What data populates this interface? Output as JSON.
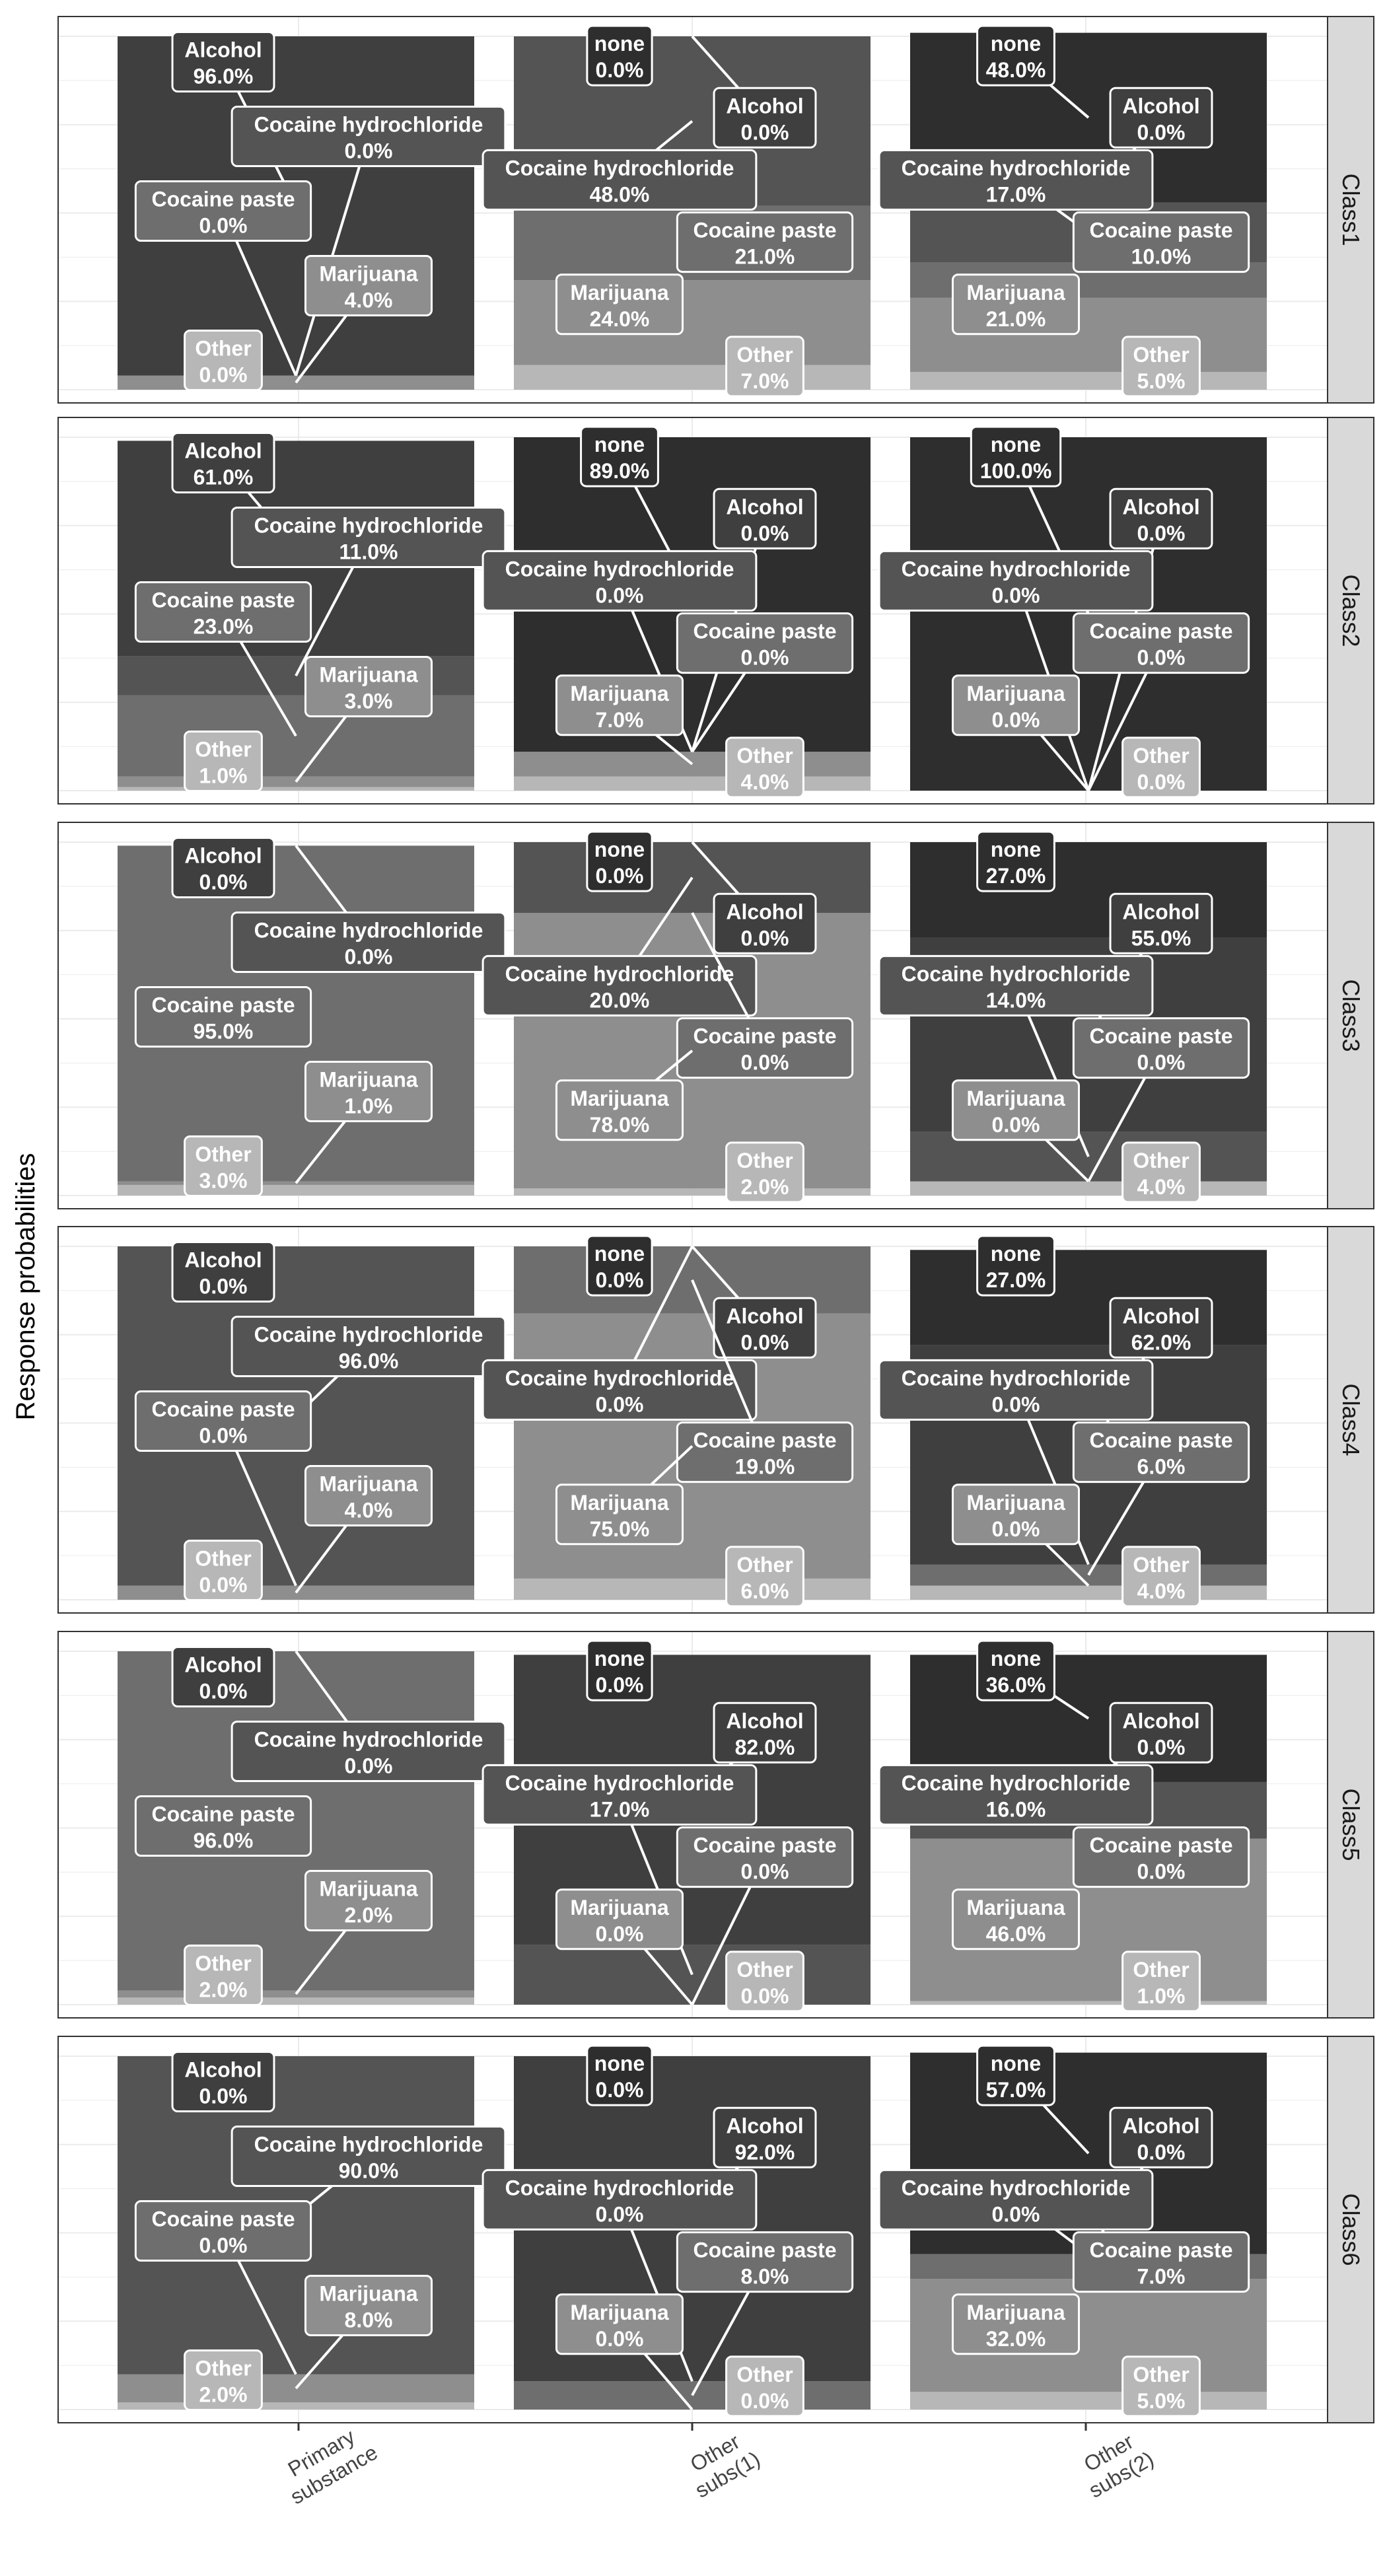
{
  "chart_data": {
    "type": "stacked-bar",
    "ylabel": "Response probabilities",
    "x_ticks": [
      [
        "Primary",
        "substance"
      ],
      [
        "Other",
        "subs(1)"
      ],
      [
        "Other",
        "subs(2)"
      ]
    ],
    "stack_order": [
      "Other",
      "Marijuana",
      "Cocaine paste",
      "Cocaine hydrochloride",
      "Alcohol",
      "none"
    ],
    "colors": {
      "Other": "#b7b7b7",
      "Marijuana": "#8e8e8e",
      "Cocaine paste": "#6e6e6e",
      "Cocaine hydrochloride": "#545454",
      "Alcohol": "#3f3f3f",
      "none": "#2e2e2e"
    },
    "panels": [
      {
        "name": "Class1",
        "columns": [
          {
            "Alcohol": "96.0%",
            "Cocaine hydrochloride": "0.0%",
            "Cocaine paste": "0.0%",
            "Marijuana": "4.0%",
            "Other": "0.0%"
          },
          {
            "none": "0.0%",
            "Alcohol": "0.0%",
            "Cocaine hydrochloride": "48.0%",
            "Cocaine paste": "21.0%",
            "Marijuana": "24.0%",
            "Other": "7.0%"
          },
          {
            "none": "48.0%",
            "Alcohol": "0.0%",
            "Cocaine hydrochloride": "17.0%",
            "Cocaine paste": "10.0%",
            "Marijuana": "21.0%",
            "Other": "5.0%"
          }
        ]
      },
      {
        "name": "Class2",
        "columns": [
          {
            "Alcohol": "61.0%",
            "Cocaine hydrochloride": "11.0%",
            "Cocaine paste": "23.0%",
            "Marijuana": "3.0%",
            "Other": "1.0%"
          },
          {
            "none": "89.0%",
            "Alcohol": "0.0%",
            "Cocaine hydrochloride": "0.0%",
            "Cocaine paste": "0.0%",
            "Marijuana": "7.0%",
            "Other": "4.0%"
          },
          {
            "none": "100.0%",
            "Alcohol": "0.0%",
            "Cocaine hydrochloride": "0.0%",
            "Cocaine paste": "0.0%",
            "Marijuana": "0.0%",
            "Other": "0.0%"
          }
        ]
      },
      {
        "name": "Class3",
        "columns": [
          {
            "Alcohol": "0.0%",
            "Cocaine hydrochloride": "0.0%",
            "Cocaine paste": "95.0%",
            "Marijuana": "1.0%",
            "Other": "3.0%"
          },
          {
            "none": "0.0%",
            "Alcohol": "0.0%",
            "Cocaine hydrochloride": "20.0%",
            "Cocaine paste": "0.0%",
            "Marijuana": "78.0%",
            "Other": "2.0%"
          },
          {
            "none": "27.0%",
            "Alcohol": "55.0%",
            "Cocaine hydrochloride": "14.0%",
            "Cocaine paste": "0.0%",
            "Marijuana": "0.0%",
            "Other": "4.0%"
          }
        ]
      },
      {
        "name": "Class4",
        "columns": [
          {
            "Alcohol": "0.0%",
            "Cocaine hydrochloride": "96.0%",
            "Cocaine paste": "0.0%",
            "Marijuana": "4.0%",
            "Other": "0.0%"
          },
          {
            "none": "0.0%",
            "Alcohol": "0.0%",
            "Cocaine hydrochloride": "0.0%",
            "Cocaine paste": "19.0%",
            "Marijuana": "75.0%",
            "Other": "6.0%"
          },
          {
            "none": "27.0%",
            "Alcohol": "62.0%",
            "Cocaine hydrochloride": "0.0%",
            "Cocaine paste": "6.0%",
            "Marijuana": "0.0%",
            "Other": "4.0%"
          }
        ]
      },
      {
        "name": "Class5",
        "columns": [
          {
            "Alcohol": "0.0%",
            "Cocaine hydrochloride": "0.0%",
            "Cocaine paste": "96.0%",
            "Marijuana": "2.0%",
            "Other": "2.0%"
          },
          {
            "none": "0.0%",
            "Alcohol": "82.0%",
            "Cocaine hydrochloride": "17.0%",
            "Cocaine paste": "0.0%",
            "Marijuana": "0.0%",
            "Other": "0.0%"
          },
          {
            "none": "36.0%",
            "Alcohol": "0.0%",
            "Cocaine hydrochloride": "16.0%",
            "Cocaine paste": "0.0%",
            "Marijuana": "46.0%",
            "Other": "1.0%"
          }
        ]
      },
      {
        "name": "Class6",
        "columns": [
          {
            "Alcohol": "0.0%",
            "Cocaine hydrochloride": "90.0%",
            "Cocaine paste": "0.0%",
            "Marijuana": "8.0%",
            "Other": "2.0%"
          },
          {
            "none": "0.0%",
            "Alcohol": "92.0%",
            "Cocaine hydrochloride": "0.0%",
            "Cocaine paste": "8.0%",
            "Marijuana": "0.0%",
            "Other": "0.0%"
          },
          {
            "none": "57.0%",
            "Alcohol": "0.0%",
            "Cocaine hydrochloride": "0.0%",
            "Cocaine paste": "7.0%",
            "Marijuana": "32.0%",
            "Other": "5.0%"
          }
        ]
      }
    ]
  }
}
